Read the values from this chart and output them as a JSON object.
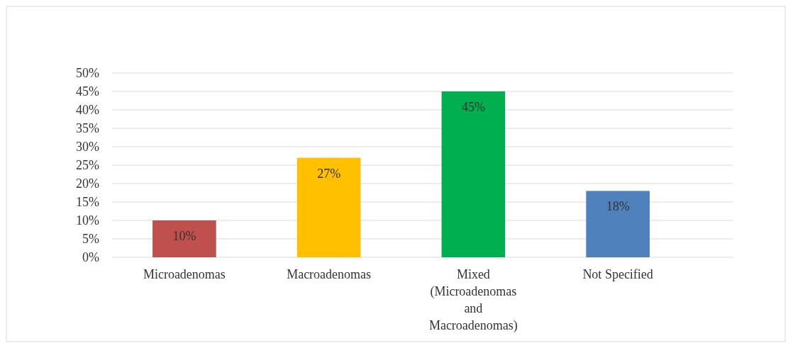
{
  "chart_data": {
    "type": "bar",
    "categories": [
      "Microadenomas",
      "Macroadenomas",
      "Mixed (Microadenomas and Macroadenomas)",
      "Not Specified"
    ],
    "values": [
      10,
      27,
      45,
      18
    ],
    "colors": [
      "#c0504d",
      "#ffc000",
      "#00b050",
      "#4f81bd"
    ],
    "value_labels": [
      "10%",
      "27%",
      "45%",
      "18%"
    ],
    "ylim": [
      0,
      50
    ],
    "yticks": [
      {
        "value": 0,
        "label": "0%"
      },
      {
        "value": 5,
        "label": "5%"
      },
      {
        "value": 10,
        "label": "10%"
      },
      {
        "value": 15,
        "label": "15%"
      },
      {
        "value": 20,
        "label": "20%"
      },
      {
        "value": 25,
        "label": "25%"
      },
      {
        "value": 30,
        "label": "30%"
      },
      {
        "value": 35,
        "label": "35%"
      },
      {
        "value": 40,
        "label": "40%"
      },
      {
        "value": 45,
        "label": "45%"
      },
      {
        "value": 50,
        "label": "50%"
      }
    ],
    "grid": "y"
  }
}
